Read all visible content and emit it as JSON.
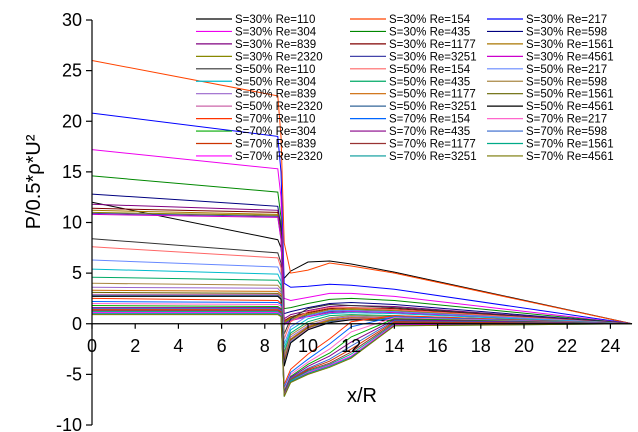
{
  "chart_data": {
    "type": "line",
    "title": "",
    "xlabel": "x/R",
    "ylabel": "P/0.5*ρ*U²",
    "xlim": [
      0,
      25
    ],
    "ylim": [
      -10,
      30
    ],
    "x_ticks": [
      0,
      2,
      4,
      6,
      8,
      10,
      12,
      14,
      16,
      18,
      20,
      22,
      24
    ],
    "y_ticks": [
      -10,
      -5,
      0,
      5,
      10,
      15,
      20,
      25,
      30
    ],
    "grid": false,
    "legend_position": "top-right",
    "x_key_points": [
      0,
      8.6,
      8.75,
      8.9,
      9.2,
      10,
      11,
      12,
      14,
      25
    ],
    "series": [
      {
        "name": "S=30% Re=110",
        "color": "#000000",
        "values": [
          12.0,
          8.3,
          7.5,
          4.5,
          5.2,
          6.1,
          6.2,
          5.9,
          5.1,
          0.0
        ]
      },
      {
        "name": "S=30% Re=154",
        "color": "#ff4400",
        "values": [
          26.0,
          22.5,
          18.5,
          8.0,
          5.0,
          5.3,
          6.0,
          5.7,
          5.0,
          0.0
        ]
      },
      {
        "name": "S=30% Re=217",
        "color": "#0000ff",
        "values": [
          20.8,
          18.5,
          15.0,
          4.0,
          3.6,
          3.7,
          3.9,
          3.8,
          3.4,
          0.0
        ]
      },
      {
        "name": "S=30% Re=304",
        "color": "#ee00ee",
        "values": [
          17.2,
          15.3,
          12.5,
          2.5,
          2.3,
          2.6,
          3.0,
          3.0,
          2.7,
          0.0
        ]
      },
      {
        "name": "S=30% Re=435",
        "color": "#008800",
        "values": [
          14.6,
          13.0,
          10.5,
          1.5,
          1.6,
          2.0,
          2.4,
          2.5,
          2.3,
          0.0
        ]
      },
      {
        "name": "S=30% Re=598",
        "color": "#000080",
        "values": [
          12.8,
          11.6,
          9.5,
          1.0,
          1.2,
          1.6,
          2.0,
          2.1,
          1.9,
          0.0
        ]
      },
      {
        "name": "S=30% Re=839",
        "color": "#800080",
        "values": [
          11.8,
          11.2,
          9.0,
          0.5,
          0.9,
          1.3,
          1.7,
          1.8,
          1.7,
          0.0
        ]
      },
      {
        "name": "S=30% Re=1177",
        "color": "#800000",
        "values": [
          11.4,
          11.0,
          8.8,
          0.3,
          0.7,
          1.1,
          1.5,
          1.6,
          1.5,
          0.0
        ]
      },
      {
        "name": "S=30% Re=1561",
        "color": "#aa7700",
        "values": [
          11.2,
          10.8,
          8.6,
          0.2,
          0.6,
          1.0,
          1.4,
          1.5,
          1.4,
          0.0
        ]
      },
      {
        "name": "S=30% Re=2320",
        "color": "#888800",
        "values": [
          11.0,
          10.7,
          8.5,
          0.1,
          0.5,
          0.9,
          1.3,
          1.4,
          1.3,
          0.0
        ]
      },
      {
        "name": "S=30% Re=3251",
        "color": "#4444aa",
        "values": [
          10.9,
          10.6,
          8.4,
          0.0,
          0.4,
          0.8,
          1.2,
          1.3,
          1.2,
          0.0
        ]
      },
      {
        "name": "S=30% Re=4561",
        "color": "#cc00cc",
        "values": [
          10.8,
          10.5,
          8.3,
          -0.1,
          0.3,
          0.7,
          1.1,
          1.2,
          1.1,
          0.0
        ]
      },
      {
        "name": "S=50% Re=110",
        "color": "#333333",
        "values": [
          8.4,
          7.0,
          6.0,
          -1.0,
          0.5,
          1.5,
          1.9,
          1.8,
          1.6,
          0.0
        ]
      },
      {
        "name": "S=50% Re=154",
        "color": "#ff6666",
        "values": [
          7.6,
          6.5,
          5.5,
          -1.5,
          0.2,
          1.2,
          1.6,
          1.6,
          1.4,
          0.0
        ]
      },
      {
        "name": "S=50% Re=217",
        "color": "#6688ff",
        "values": [
          6.3,
          5.6,
          4.8,
          -2.0,
          -0.3,
          0.8,
          1.3,
          1.3,
          1.2,
          0.0
        ]
      },
      {
        "name": "S=50% Re=304",
        "color": "#00bbcc",
        "values": [
          5.4,
          4.9,
          4.2,
          -2.4,
          -0.6,
          0.5,
          1.0,
          1.1,
          1.0,
          0.0
        ]
      },
      {
        "name": "S=50% Re=435",
        "color": "#00aa66",
        "values": [
          4.6,
          4.3,
          3.8,
          -2.8,
          -0.9,
          0.2,
          0.8,
          0.9,
          0.8,
          0.0
        ]
      },
      {
        "name": "S=50% Re=598",
        "color": "#aa8844",
        "values": [
          4.0,
          3.8,
          3.4,
          -3.1,
          -1.1,
          0.0,
          0.6,
          0.8,
          0.7,
          0.0
        ]
      },
      {
        "name": "S=50% Re=839",
        "color": "#9966cc",
        "values": [
          3.6,
          3.5,
          3.1,
          -3.4,
          -1.3,
          -0.2,
          0.5,
          0.7,
          0.6,
          0.0
        ]
      },
      {
        "name": "S=50% Re=1177",
        "color": "#cc6600",
        "values": [
          3.3,
          3.2,
          2.9,
          -3.6,
          -1.5,
          -0.3,
          0.4,
          0.6,
          0.5,
          0.0
        ]
      },
      {
        "name": "S=50% Re=1561",
        "color": "#666600",
        "values": [
          3.1,
          3.0,
          2.7,
          -3.8,
          -1.6,
          -0.4,
          0.3,
          0.5,
          0.5,
          0.0
        ]
      },
      {
        "name": "S=50% Re=2320",
        "color": "#cc66aa",
        "values": [
          2.9,
          2.9,
          2.6,
          -4.0,
          -1.7,
          -0.5,
          0.2,
          0.5,
          0.4,
          0.0
        ]
      },
      {
        "name": "S=50% Re=3251",
        "color": "#336699",
        "values": [
          2.8,
          2.8,
          2.5,
          -4.1,
          -1.8,
          -0.6,
          0.2,
          0.4,
          0.4,
          0.0
        ]
      },
      {
        "name": "S=50% Re=4561",
        "color": "#000000",
        "values": [
          2.7,
          2.7,
          2.4,
          -4.2,
          -1.9,
          -0.6,
          0.1,
          0.4,
          0.3,
          0.0
        ]
      },
      {
        "name": "S=70% Re=110",
        "color": "#ff3300",
        "values": [
          2.5,
          2.3,
          2.0,
          -6.0,
          -4.5,
          -3.0,
          -1.5,
          0.2,
          0.8,
          0.0
        ]
      },
      {
        "name": "S=70% Re=154",
        "color": "#0066ff",
        "values": [
          2.2,
          2.1,
          1.9,
          -6.3,
          -4.8,
          -3.5,
          -2.0,
          -0.3,
          0.7,
          0.0
        ]
      },
      {
        "name": "S=70% Re=217",
        "color": "#ff66cc",
        "values": [
          2.0,
          1.9,
          1.7,
          -6.5,
          -5.0,
          -3.8,
          -2.5,
          -0.8,
          0.6,
          0.0
        ]
      },
      {
        "name": "S=70% Re=304",
        "color": "#00aa00",
        "values": [
          1.8,
          1.7,
          1.5,
          -6.7,
          -5.2,
          -4.0,
          -2.9,
          -1.3,
          0.5,
          0.0
        ]
      },
      {
        "name": "S=70% Re=435",
        "color": "#880088",
        "values": [
          1.6,
          1.6,
          1.4,
          -6.8,
          -5.3,
          -4.2,
          -3.2,
          -1.8,
          0.4,
          0.0
        ]
      },
      {
        "name": "S=70% Re=598",
        "color": "#3366cc",
        "values": [
          1.5,
          1.5,
          1.3,
          -6.9,
          -5.4,
          -4.4,
          -3.5,
          -2.2,
          0.3,
          0.0
        ]
      },
      {
        "name": "S=70% Re=839",
        "color": "#cc3300",
        "values": [
          1.4,
          1.4,
          1.2,
          -7.0,
          -5.5,
          -4.5,
          -3.7,
          -2.5,
          0.2,
          0.0
        ]
      },
      {
        "name": "S=70% Re=1177",
        "color": "#993333",
        "values": [
          1.3,
          1.3,
          1.1,
          -7.0,
          -5.6,
          -4.6,
          -3.9,
          -2.8,
          0.1,
          0.0
        ]
      },
      {
        "name": "S=70% Re=1561",
        "color": "#00aa88",
        "values": [
          1.2,
          1.2,
          1.0,
          -7.1,
          -5.6,
          -4.7,
          -4.0,
          -3.0,
          0.0,
          0.0
        ]
      },
      {
        "name": "S=70% Re=2320",
        "color": "#ff00ff",
        "values": [
          1.1,
          1.1,
          0.9,
          -7.1,
          -5.7,
          -4.8,
          -4.1,
          -3.2,
          -0.1,
          0.0
        ]
      },
      {
        "name": "S=70% Re=3251",
        "color": "#009999",
        "values": [
          1.0,
          1.0,
          0.8,
          -7.2,
          -5.7,
          -4.9,
          -4.2,
          -3.3,
          -0.2,
          0.0
        ]
      },
      {
        "name": "S=70% Re=4561",
        "color": "#777700",
        "values": [
          0.9,
          0.9,
          0.7,
          -7.2,
          -5.8,
          -5.0,
          -4.3,
          -3.4,
          -0.2,
          0.0
        ]
      }
    ]
  }
}
